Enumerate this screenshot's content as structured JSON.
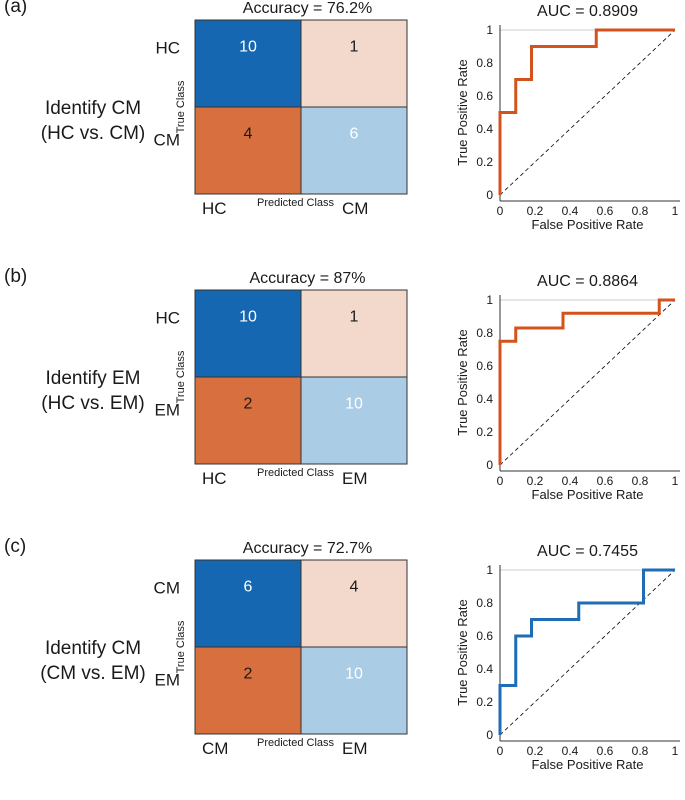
{
  "chart_data": [
    {
      "panel_label": "(a)",
      "task_line1": "Identify CM",
      "task_line2": "(HC vs. CM)",
      "confusion_matrix": {
        "type": "heatmap",
        "title": "Accuracy = 76.2%",
        "classes": [
          "HC",
          "CM"
        ],
        "xlabel": "Predicted Class",
        "ylabel": "True Class",
        "values": [
          [
            10,
            1
          ],
          [
            4,
            6
          ]
        ]
      },
      "roc": {
        "type": "line",
        "title": "AUC = 0.8909",
        "xlabel": "False Positive Rate",
        "ylabel": "True Positive Rate",
        "xlim": [
          0,
          1
        ],
        "ylim": [
          0,
          1
        ],
        "xticks": [
          "0",
          "0.2",
          "0.4",
          "0.6",
          "0.8",
          "1"
        ],
        "yticks": [
          "0",
          "0.2",
          "0.4",
          "0.6",
          "0.8",
          "1"
        ],
        "color": "#d4531c",
        "x": [
          0,
          0,
          0.09,
          0.09,
          0.18,
          0.18,
          0.55,
          0.55,
          1
        ],
        "y": [
          0,
          0.5,
          0.5,
          0.7,
          0.7,
          0.9,
          0.9,
          1,
          1
        ]
      }
    },
    {
      "panel_label": "(b)",
      "task_line1": "Identify EM",
      "task_line2": "(HC vs. EM)",
      "confusion_matrix": {
        "type": "heatmap",
        "title": "Accuracy = 87%",
        "classes": [
          "HC",
          "EM"
        ],
        "xlabel": "Predicted Class",
        "ylabel": "True Class",
        "values": [
          [
            10,
            1
          ],
          [
            2,
            10
          ]
        ]
      },
      "roc": {
        "type": "line",
        "title": "AUC = 0.8864",
        "xlabel": "False Positive Rate",
        "ylabel": "True Positive Rate",
        "xlim": [
          0,
          1
        ],
        "ylim": [
          0,
          1
        ],
        "xticks": [
          "0",
          "0.2",
          "0.4",
          "0.6",
          "0.8",
          "1"
        ],
        "yticks": [
          "0",
          "0.2",
          "0.4",
          "0.6",
          "0.8",
          "1"
        ],
        "color": "#d4531c",
        "x": [
          0,
          0,
          0.09,
          0.09,
          0.36,
          0.36,
          0.91,
          0.91,
          1
        ],
        "y": [
          0,
          0.75,
          0.75,
          0.83,
          0.83,
          0.92,
          0.92,
          1,
          1
        ]
      }
    },
    {
      "panel_label": "(c)",
      "task_line1": "Identify CM",
      "task_line2": "(CM vs. EM)",
      "confusion_matrix": {
        "type": "heatmap",
        "title": "Accuracy = 72.7%",
        "classes": [
          "CM",
          "EM"
        ],
        "xlabel": "Predicted Class",
        "ylabel": "True Class",
        "values": [
          [
            6,
            4
          ],
          [
            2,
            10
          ]
        ]
      },
      "roc": {
        "type": "line",
        "title": "AUC = 0.7455",
        "xlabel": "False Positive Rate",
        "ylabel": "True Positive Rate",
        "xlim": [
          0,
          1
        ],
        "ylim": [
          0,
          1
        ],
        "xticks": [
          "0",
          "0.2",
          "0.4",
          "0.6",
          "0.8",
          "1"
        ],
        "yticks": [
          "0",
          "0.2",
          "0.4",
          "0.6",
          "0.8",
          "1"
        ],
        "color": "#1f6db5",
        "x": [
          0,
          0,
          0.09,
          0.09,
          0.18,
          0.18,
          0.45,
          0.45,
          0.82,
          0.82,
          1
        ],
        "y": [
          0,
          0.3,
          0.3,
          0.6,
          0.6,
          0.7,
          0.7,
          0.8,
          0.8,
          1,
          1
        ]
      }
    }
  ],
  "colors": {
    "cm_true_pos_1": "#1467b0",
    "cm_false_neg": "#f3d9cc",
    "cm_false_pos": "#d86f3f",
    "cm_true_pos_2": "#abcce5",
    "diagonal": "#000000",
    "grid_top": "#cccccc"
  }
}
